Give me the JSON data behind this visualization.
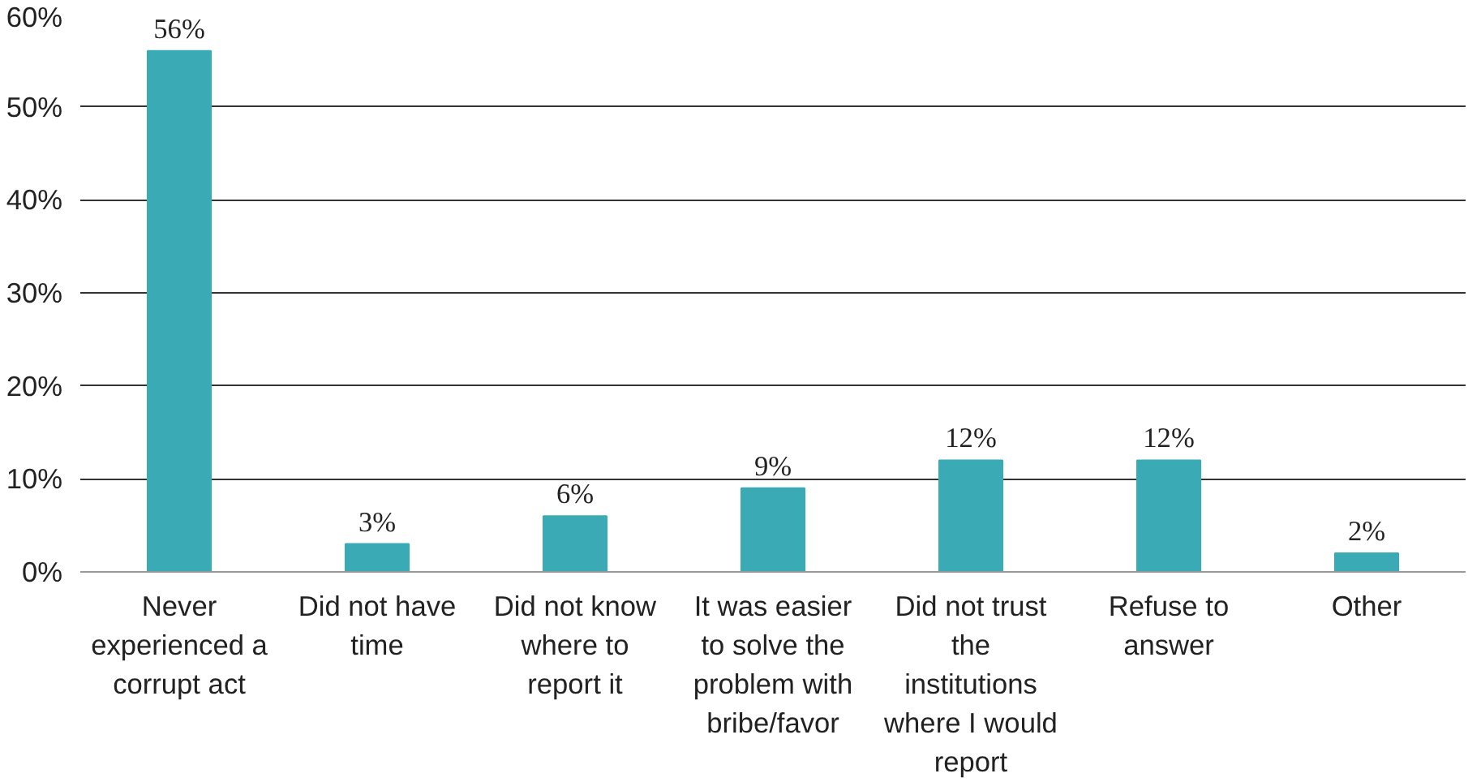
{
  "chart_data": {
    "type": "bar",
    "categories": [
      "Never experienced a corrupt act",
      "Did not have time",
      "Did not know where to report it",
      "It was easier to solve the problem with bribe/favor",
      "Did not trust the institutions where I would report",
      "Refuse to answer",
      "Other"
    ],
    "values": [
      56,
      3,
      6,
      9,
      12,
      12,
      2
    ],
    "color": "#3aabb5",
    "ylim": [
      0,
      60
    ],
    "yticks": [
      {
        "value": 0,
        "label": "0%"
      },
      {
        "value": 10,
        "label": "10%"
      },
      {
        "value": 20,
        "label": "20%"
      },
      {
        "value": 30,
        "label": "30%"
      },
      {
        "value": 40,
        "label": "40%"
      },
      {
        "value": 50,
        "label": "50%"
      },
      {
        "value": 60,
        "label": "60%"
      }
    ],
    "value_labels": [
      "56%",
      "3%",
      "6%",
      "9%",
      "12%",
      "12%",
      "2%"
    ],
    "grid": "y"
  }
}
